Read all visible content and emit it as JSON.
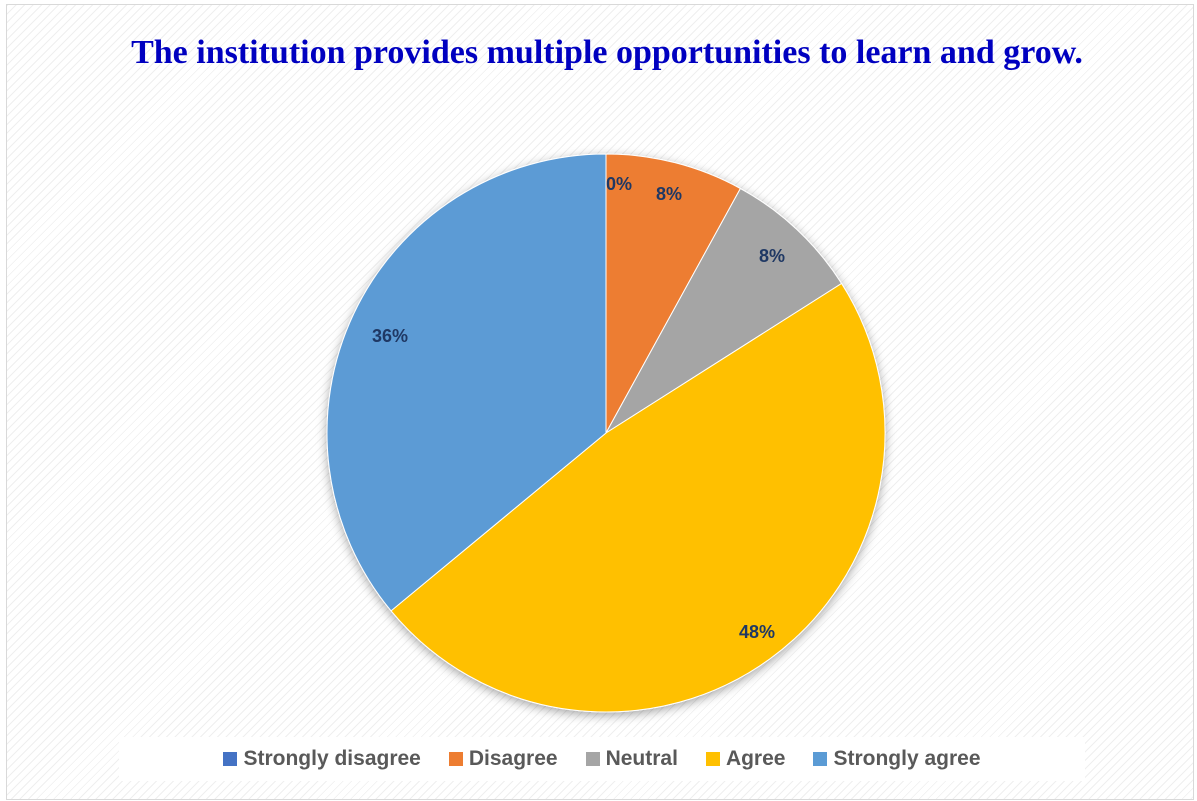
{
  "chart_data": {
    "type": "pie",
    "title": "The institution provides multiple opportunities to learn and grow.",
    "categories": [
      "Strongly disagree",
      "Disagree",
      "Neutral",
      "Agree",
      "Strongly agree"
    ],
    "values": [
      0,
      8,
      8,
      48,
      36
    ],
    "labels": [
      "0%",
      "8%",
      "8%",
      "48%",
      "36%"
    ],
    "colors": [
      "#4472c4",
      "#ed7d31",
      "#a5a5a5",
      "#ffc000",
      "#5b9bd5"
    ],
    "legend_position": "bottom"
  }
}
